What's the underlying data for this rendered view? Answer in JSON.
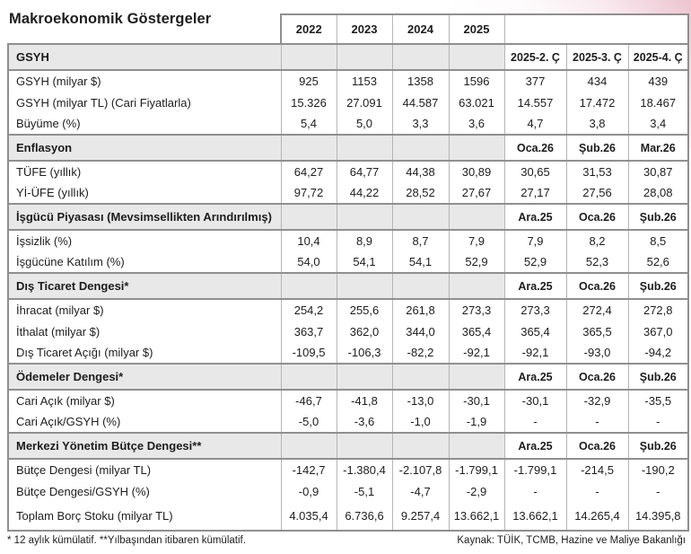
{
  "page": {
    "title": "Makroekonomik Göstergeler",
    "footnote": "* 12 aylık kümülatif. **Yılbaşından itibaren kümülatif.",
    "source": "Kaynak: TÜİK, TCMB, Hazine ve Maliye Bakanlığı"
  },
  "colors": {
    "section_header_bg": "#e8e8e8",
    "border_strong": "#8f8f8f",
    "border_light": "#b5b5b5",
    "text": "#1d1d1d",
    "corner_pink": "#e6b0c0"
  },
  "table": {
    "year_columns": [
      "2022",
      "2023",
      "2024",
      "2025"
    ],
    "sections": [
      {
        "label": "GSYH",
        "period_columns": [
          "2025-2. Ç",
          "2025-3. Ç",
          "2025-4. Ç"
        ],
        "rows": [
          {
            "label": "GSYH (milyar $)",
            "values": [
              "925",
              "1153",
              "1358",
              "1596",
              "377",
              "434",
              "439"
            ]
          },
          {
            "label": "GSYH (milyar TL) (Cari Fiyatlarla)",
            "values": [
              "15.326",
              "27.091",
              "44.587",
              "63.021",
              "14.557",
              "17.472",
              "18.467"
            ]
          },
          {
            "label": "Büyüme (%)",
            "values": [
              "5,4",
              "5,0",
              "3,3",
              "3,6",
              "4,7",
              "3,8",
              "3,4"
            ]
          }
        ]
      },
      {
        "label": "Enflasyon",
        "period_columns": [
          "Oca.26",
          "Şub.26",
          "Mar.26"
        ],
        "rows": [
          {
            "label": "TÜFE (yıllık)",
            "values": [
              "64,27",
              "64,77",
              "44,38",
              "30,89",
              "30,65",
              "31,53",
              "30,87"
            ]
          },
          {
            "label": "Yİ-ÜFE (yıllık)",
            "values": [
              "97,72",
              "44,22",
              "28,52",
              "27,67",
              "27,17",
              "27,56",
              "28,08"
            ]
          }
        ]
      },
      {
        "label": "İşgücü Piyasası (Mevsimsellikten Arındırılmış)",
        "period_columns": [
          "Ara.25",
          "Oca.26",
          "Şub.26"
        ],
        "rows": [
          {
            "label": "İşsizlik (%)",
            "values": [
              "10,4",
              "8,9",
              "8,7",
              "7,9",
              "7,9",
              "8,2",
              "8,5"
            ]
          },
          {
            "label": "İşgücüne Katılım (%)",
            "values": [
              "54,0",
              "54,1",
              "54,1",
              "52,9",
              "52,9",
              "52,3",
              "52,6"
            ]
          }
        ]
      },
      {
        "label": "Dış Ticaret Dengesi*",
        "period_columns": [
          "Ara.25",
          "Oca.26",
          "Şub.26"
        ],
        "rows": [
          {
            "label": "İhracat (milyar $)",
            "values": [
              "254,2",
              "255,6",
              "261,8",
              "273,3",
              "273,3",
              "272,4",
              "272,8"
            ]
          },
          {
            "label": "İthalat (milyar $)",
            "values": [
              "363,7",
              "362,0",
              "344,0",
              "365,4",
              "365,4",
              "365,5",
              "367,0"
            ]
          },
          {
            "label": "Dış Ticaret Açığı (milyar $)",
            "values": [
              "-109,5",
              "-106,3",
              "-82,2",
              "-92,1",
              "-92,1",
              "-93,0",
              "-94,2"
            ]
          }
        ]
      },
      {
        "label": "Ödemeler Dengesi*",
        "period_columns": [
          "Ara.25",
          "Oca.26",
          "Şub.26"
        ],
        "rows": [
          {
            "label": "Cari Açık (milyar $)",
            "values": [
              "-46,7",
              "-41,8",
              "-13,0",
              "-30,1",
              "-30,1",
              "-32,9",
              "-35,5"
            ]
          },
          {
            "label": "Cari Açık/GSYH (%)",
            "values": [
              "-5,0",
              "-3,6",
              "-1,0",
              "-1,9",
              "-",
              "-",
              "-"
            ]
          }
        ]
      },
      {
        "label": "Merkezi Yönetim Bütçe Dengesi**",
        "period_columns": [
          "Ara.25",
          "Oca.26",
          "Şub.26"
        ],
        "rows": [
          {
            "label": "Bütçe Dengesi (milyar TL)",
            "values": [
              "-142,7",
              "-1.380,4",
              "-2.107,8",
              "-1.799,1",
              "-1.799,1",
              "-214,5",
              "-190,2"
            ]
          },
          {
            "label": "Bütçe Dengesi/GSYH (%)",
            "values": [
              "-0,9",
              "-5,1",
              "-4,7",
              "-2,9",
              "-",
              "-",
              "-"
            ]
          },
          {
            "label": "Toplam Borç Stoku (milyar TL)",
            "values": [
              "4.035,4",
              "6.736,6",
              "9.257,4",
              "13.662,1",
              "13.662,1",
              "14.265,4",
              "14.395,8"
            ]
          }
        ]
      }
    ]
  }
}
